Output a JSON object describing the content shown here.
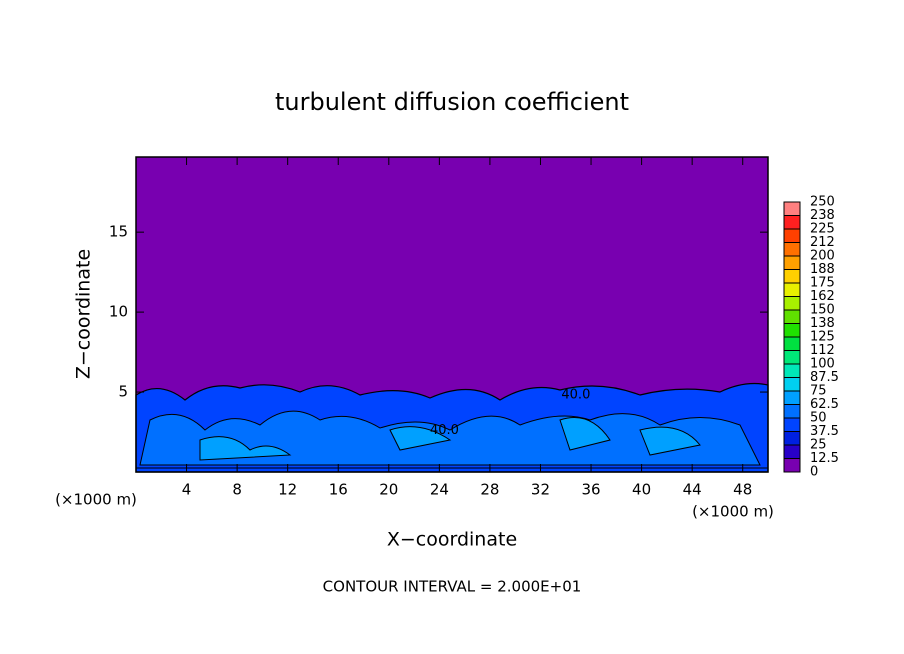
{
  "chart_data": {
    "type": "contour",
    "title": "turbulent diffusion coefficient",
    "xlabel": "X−coordinate",
    "ylabel": "Z−coordinate",
    "x_unit": "(×1000 m)",
    "x_unit_right": "(×1000 m)",
    "footer": "CONTOUR INTERVAL = 2.000E+01",
    "xlim": [
      0,
      50
    ],
    "ylim": [
      0,
      19.7
    ],
    "xticks": [
      4,
      8,
      12,
      16,
      20,
      24,
      28,
      32,
      36,
      40,
      44,
      48
    ],
    "yticks": [
      5,
      10,
      15
    ],
    "annotations": [
      {
        "text": "40.0",
        "x": 34.8,
        "y": 4.8
      },
      {
        "text": "40.0",
        "x": 24.4,
        "y": 2.6
      }
    ],
    "colorbar": {
      "lim": [
        0,
        250
      ],
      "ticks": [
        0,
        12.5,
        25,
        37.5,
        50,
        62.5,
        75,
        87.5,
        100,
        {
          "value": 112.5,
          "label": "112"
        },
        125,
        {
          "value": 137.5,
          "label": "138"
        },
        150,
        {
          "value": 162.5,
          "label": "162"
        },
        175,
        {
          "value": 187.5,
          "label": "188"
        },
        200,
        {
          "value": 212.5,
          "label": "212"
        },
        225,
        {
          "value": 237.5,
          "label": "238"
        },
        250
      ],
      "colors": [
        "#7800b0",
        "#2800c8",
        "#0020e0",
        "#0044ff",
        "#0070ff",
        "#00a0ff",
        "#00d0f0",
        "#00e8b8",
        "#00e878",
        "#00e040",
        "#20e000",
        "#60e000",
        "#a8f000",
        "#e8f000",
        "#ffd000",
        "#ffa000",
        "#ff7000",
        "#ff4000",
        "#ff2020",
        "#ff8080"
      ]
    }
  }
}
